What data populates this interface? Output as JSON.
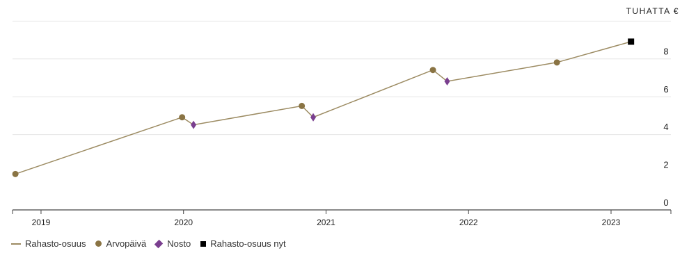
{
  "chart_data": {
    "type": "line",
    "unit_label": "TUHATTA €",
    "x_ticks": [
      "2019",
      "2020",
      "2021",
      "2022",
      "2023"
    ],
    "y_ticks": [
      "0",
      "2",
      "4",
      "6",
      "8"
    ],
    "xlim": [
      2018.8,
      2023.42
    ],
    "ylim": [
      0,
      10
    ],
    "grid": true,
    "series": [
      {
        "name": "Rahasto-osuus",
        "color": "#9c8b62",
        "marker": "line",
        "points": [
          [
            2018.82,
            1.9
          ],
          [
            2019.99,
            4.9
          ],
          [
            2020.07,
            4.5
          ],
          [
            2020.83,
            5.5
          ],
          [
            2020.91,
            4.9
          ],
          [
            2021.75,
            7.4
          ],
          [
            2021.85,
            6.8
          ],
          [
            2022.62,
            7.8
          ],
          [
            2023.14,
            8.9
          ]
        ]
      },
      {
        "name": "Arvopäivä",
        "color": "#8a7444",
        "marker": "circle",
        "points": [
          [
            2018.82,
            1.9
          ],
          [
            2019.99,
            4.9
          ],
          [
            2020.83,
            5.5
          ],
          [
            2021.75,
            7.4
          ],
          [
            2022.62,
            7.8
          ]
        ]
      },
      {
        "name": "Nosto",
        "color": "#7a3f8f",
        "marker": "diamond",
        "points": [
          [
            2020.07,
            4.5
          ],
          [
            2020.91,
            4.9
          ],
          [
            2021.85,
            6.8
          ]
        ]
      },
      {
        "name": "Rahasto-osuus nyt",
        "color": "#000000",
        "marker": "square",
        "points": [
          [
            2023.14,
            8.9
          ]
        ]
      }
    ]
  },
  "legend": {
    "items": [
      {
        "label": "Rahasto-osuus"
      },
      {
        "label": "Arvopäivä"
      },
      {
        "label": "Nosto"
      },
      {
        "label": "Rahasto-osuus nyt"
      }
    ]
  }
}
